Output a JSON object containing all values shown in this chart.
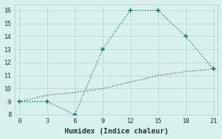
{
  "line1_x": [
    0,
    3,
    6,
    9,
    12,
    15,
    18,
    21
  ],
  "line1_y": [
    9,
    9,
    8,
    13,
    16,
    16,
    14,
    11.5
  ],
  "line2_x": [
    0,
    3,
    6,
    9,
    12,
    15,
    18,
    21
  ],
  "line2_y": [
    9,
    9.5,
    9.7,
    10.0,
    10.5,
    11.0,
    11.3,
    11.5
  ],
  "line_color": "#1a7a6e",
  "bg_color": "#d8f0ee",
  "grid_color": "#c0ddd8",
  "xlabel": "Humidex (Indice chaleur)",
  "xlim": [
    -0.5,
    21.5
  ],
  "ylim": [
    8,
    16.5
  ],
  "xticks": [
    0,
    3,
    6,
    9,
    12,
    15,
    18,
    21
  ],
  "yticks": [
    8,
    9,
    10,
    11,
    12,
    13,
    14,
    15,
    16
  ],
  "font_color": "#1a3a3a",
  "xlabel_fontsize": 7.5,
  "tick_fontsize": 6.5
}
